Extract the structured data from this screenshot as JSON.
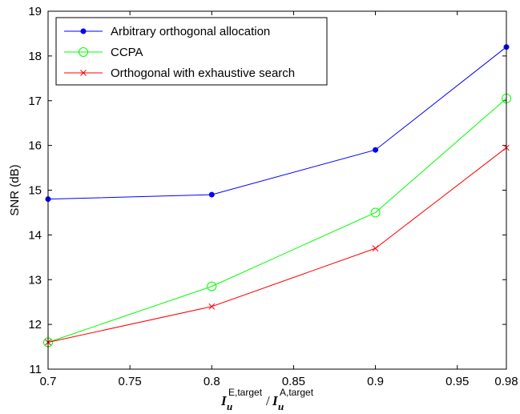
{
  "chart_data": {
    "type": "line",
    "x": [
      0.7,
      0.8,
      0.9,
      0.98
    ],
    "xlim": [
      0.7,
      0.98
    ],
    "ylim": [
      11,
      19
    ],
    "xticks": [
      "0.7",
      "0.75",
      "0.8",
      "0.85",
      "0.9",
      "0.95",
      "0.98"
    ],
    "xtick_values": [
      0.7,
      0.75,
      0.8,
      0.85,
      0.9,
      0.95,
      0.98
    ],
    "yticks": [
      "11",
      "12",
      "13",
      "14",
      "15",
      "16",
      "17",
      "18",
      "19"
    ],
    "ytick_values": [
      11,
      12,
      13,
      14,
      15,
      16,
      17,
      18,
      19
    ],
    "ylabel": "SNR (dB)",
    "xlabel": {
      "num_base": "I",
      "num_sub": "u",
      "num_sup": "E,target",
      "slash": "/",
      "den_base": "I",
      "den_sub": "u",
      "den_sup": "A,target"
    },
    "grid": false,
    "legend_position": "top-left",
    "series": [
      {
        "name": "Arbitrary orthogonal allocation",
        "color": "#0000ff",
        "marker": "dot",
        "values": [
          14.8,
          14.9,
          15.9,
          18.2
        ]
      },
      {
        "name": "CCPA",
        "color": "#00ff00",
        "marker": "circle",
        "values": [
          11.6,
          12.85,
          14.5,
          17.05
        ]
      },
      {
        "name": "Orthogonal with exhaustive search",
        "color": "#ff0000",
        "marker": "x",
        "values": [
          11.6,
          12.4,
          13.7,
          15.95
        ]
      }
    ]
  }
}
